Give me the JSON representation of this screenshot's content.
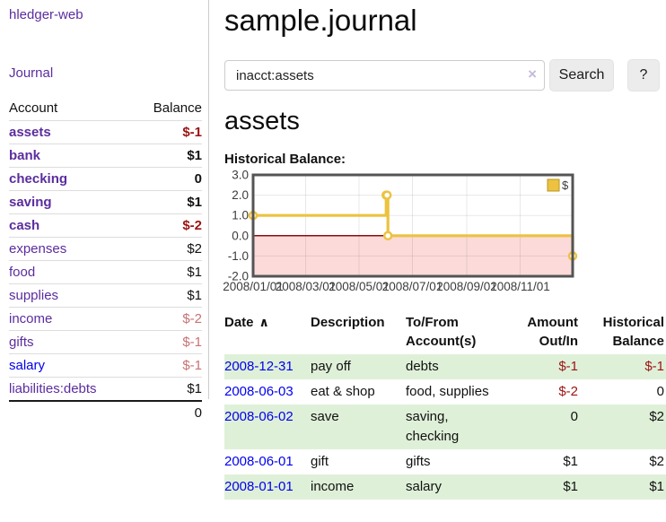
{
  "app": {
    "brand": "hledger-web",
    "nav_journal": "Journal"
  },
  "colors": {
    "link_purple": "#5b2d9e",
    "link_blue": "#0000ee",
    "negative_strong": "#9c1313",
    "negative_weak": "#c87272",
    "row_stripe_green": "#dff0d8",
    "chart_line": "#edc240",
    "chart_negative_fill": "#fcdada",
    "chart_zero_line": "#8c0d0d",
    "button_bg": "#ececec"
  },
  "sidebar": {
    "headers": {
      "account": "Account",
      "balance": "Balance"
    },
    "accounts": [
      {
        "name": "assets",
        "depth": 1,
        "bold": true,
        "balance": "$-1",
        "balance_style": "neg",
        "link_color": "purple"
      },
      {
        "name": "bank",
        "depth": 2,
        "bold": true,
        "balance": "$1",
        "balance_style": "pos",
        "link_color": "purple"
      },
      {
        "name": "checking",
        "depth": 3,
        "bold": true,
        "balance": "0",
        "balance_style": "pos",
        "link_color": "purple"
      },
      {
        "name": "saving",
        "depth": 3,
        "bold": true,
        "balance": "$1",
        "balance_style": "pos",
        "link_color": "purple"
      },
      {
        "name": "cash",
        "depth": 2,
        "bold": true,
        "balance": "$-2",
        "balance_style": "neg",
        "link_color": "purple"
      },
      {
        "name": "expenses",
        "depth": 1,
        "bold": false,
        "balance": "$2",
        "balance_style": "pos",
        "link_color": "purple"
      },
      {
        "name": "food",
        "depth": 2,
        "bold": false,
        "balance": "$1",
        "balance_style": "pos",
        "link_color": "purple"
      },
      {
        "name": "supplies",
        "depth": 2,
        "bold": false,
        "balance": "$1",
        "balance_style": "pos",
        "link_color": "purple"
      },
      {
        "name": "income",
        "depth": 1,
        "bold": false,
        "balance": "$-2",
        "balance_style": "negweak",
        "link_color": "purple"
      },
      {
        "name": "gifts",
        "depth": 2,
        "bold": false,
        "balance": "$-1",
        "balance_style": "negweak",
        "link_color": "purple"
      },
      {
        "name": "salary",
        "depth": 2,
        "bold": false,
        "balance": "$-1",
        "balance_style": "negweak",
        "link_color": "blue"
      },
      {
        "name": "liabilities:debts",
        "depth": 1,
        "bold": false,
        "balance": "$1",
        "balance_style": "pos",
        "link_color": "purple"
      }
    ],
    "total": "0"
  },
  "header": {
    "title": "sample.journal"
  },
  "search": {
    "value": "inacct:assets",
    "clear_icon": "×",
    "button_label": "Search",
    "help_label": "?"
  },
  "account_page": {
    "heading": "assets",
    "chart_label": "Historical Balance:"
  },
  "chart_data": {
    "type": "line",
    "style": "step",
    "title": "Historical Balance:",
    "legend": {
      "label": "$",
      "position": "top-right"
    },
    "series": [
      {
        "name": "$",
        "color": "#edc240",
        "points": [
          [
            "2008-01-01",
            1
          ],
          [
            "2008-06-01",
            2
          ],
          [
            "2008-06-02",
            2
          ],
          [
            "2008-06-03",
            0
          ],
          [
            "2008-12-31",
            -1
          ]
        ]
      }
    ],
    "x_start": "2008-01-01",
    "x_end": "2008-12-31",
    "xticks": [
      "2008/01/01",
      "2008/03/01",
      "2008/05/01",
      "2008/07/01",
      "2008/09/01",
      "2008/11/01"
    ],
    "yticks": [
      "3.0",
      "2.0",
      "1.0",
      "0.0",
      "-1.0",
      "-2.0"
    ],
    "ylim": [
      -2,
      3
    ],
    "grid": true,
    "negative_region_shaded": true
  },
  "register": {
    "headers": [
      {
        "label": "Date",
        "sort_icon": "∧",
        "align": "left"
      },
      {
        "label": "Description",
        "align": "left"
      },
      {
        "label": "To/From Account(s)",
        "align": "left"
      },
      {
        "label": "Amount Out/In",
        "align": "right"
      },
      {
        "label": "Historical Balance",
        "align": "right"
      }
    ],
    "rows": [
      {
        "date": "2008-12-31",
        "description": "pay off",
        "accounts": "debts",
        "amount": "$-1",
        "amount_negative": true,
        "balance": "$-1",
        "balance_negative": true,
        "stripe": true
      },
      {
        "date": "2008-06-03",
        "description": "eat & shop",
        "accounts": "food, supplies",
        "amount": "$-2",
        "amount_negative": true,
        "balance": "0",
        "balance_negative": false,
        "stripe": false
      },
      {
        "date": "2008-06-02",
        "description": "save",
        "accounts": "saving, checking",
        "amount": "0",
        "amount_negative": false,
        "balance": "$2",
        "balance_negative": false,
        "stripe": true
      },
      {
        "date": "2008-06-01",
        "description": "gift",
        "accounts": "gifts",
        "amount": "$1",
        "amount_negative": false,
        "balance": "$2",
        "balance_negative": false,
        "stripe": false
      },
      {
        "date": "2008-01-01",
        "description": "income",
        "accounts": "salary",
        "amount": "$1",
        "amount_negative": false,
        "balance": "$1",
        "balance_negative": false,
        "stripe": true
      }
    ]
  }
}
